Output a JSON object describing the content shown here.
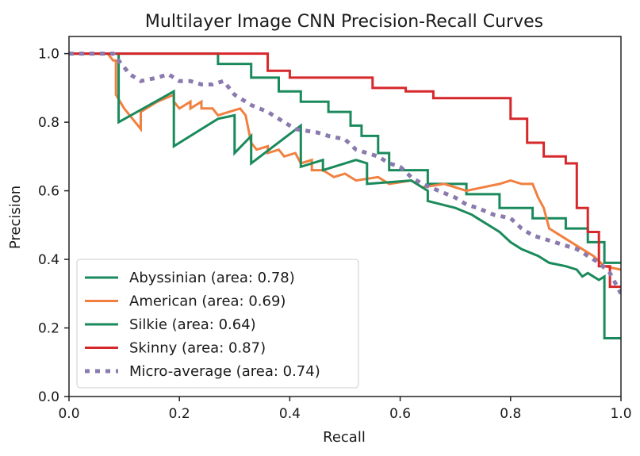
{
  "chart_data": {
    "type": "line",
    "title": "Multilayer Image CNN Precision-Recall Curves",
    "xlabel": "Recall",
    "ylabel": "Precision",
    "xlim": [
      0.0,
      1.0
    ],
    "ylim": [
      0.0,
      1.05
    ],
    "xticks": [
      "0.0",
      "0.2",
      "0.4",
      "0.6",
      "0.8",
      "1.0"
    ],
    "yticks": [
      "0.0",
      "0.2",
      "0.4",
      "0.6",
      "0.8",
      "1.0"
    ],
    "grid": false,
    "legend_position": "lower-left",
    "series": [
      {
        "name": "Abyssinian (area: 0.78)",
        "color": "#1a8a5c",
        "style": "solid",
        "points": [
          [
            0,
            1.0
          ],
          [
            0.27,
            1.0
          ],
          [
            0.27,
            0.97
          ],
          [
            0.33,
            0.97
          ],
          [
            0.33,
            0.93
          ],
          [
            0.38,
            0.93
          ],
          [
            0.38,
            0.89
          ],
          [
            0.42,
            0.89
          ],
          [
            0.42,
            0.86
          ],
          [
            0.47,
            0.86
          ],
          [
            0.47,
            0.83
          ],
          [
            0.51,
            0.83
          ],
          [
            0.51,
            0.79
          ],
          [
            0.53,
            0.79
          ],
          [
            0.53,
            0.76
          ],
          [
            0.56,
            0.76
          ],
          [
            0.56,
            0.71
          ],
          [
            0.58,
            0.71
          ],
          [
            0.58,
            0.66
          ],
          [
            0.65,
            0.66
          ],
          [
            0.65,
            0.62
          ],
          [
            0.72,
            0.62
          ],
          [
            0.72,
            0.59
          ],
          [
            0.78,
            0.59
          ],
          [
            0.78,
            0.55
          ],
          [
            0.84,
            0.55
          ],
          [
            0.84,
            0.52
          ],
          [
            0.9,
            0.52
          ],
          [
            0.9,
            0.49
          ],
          [
            0.94,
            0.49
          ],
          [
            0.94,
            0.45
          ],
          [
            0.97,
            0.45
          ],
          [
            0.97,
            0.39
          ],
          [
            1.0,
            0.39
          ]
        ]
      },
      {
        "name": "American (area: 0.69)",
        "color": "#f08040",
        "style": "solid",
        "points": [
          [
            0,
            1.0
          ],
          [
            0.07,
            1.0
          ],
          [
            0.08,
            0.98
          ],
          [
            0.085,
            0.98
          ],
          [
            0.085,
            0.88
          ],
          [
            0.1,
            0.84
          ],
          [
            0.13,
            0.78
          ],
          [
            0.13,
            0.83
          ],
          [
            0.15,
            0.85
          ],
          [
            0.16,
            0.86
          ],
          [
            0.19,
            0.88
          ],
          [
            0.19,
            0.86
          ],
          [
            0.2,
            0.84
          ],
          [
            0.22,
            0.86
          ],
          [
            0.22,
            0.84
          ],
          [
            0.24,
            0.86
          ],
          [
            0.24,
            0.84
          ],
          [
            0.26,
            0.84
          ],
          [
            0.27,
            0.82
          ],
          [
            0.29,
            0.83
          ],
          [
            0.31,
            0.84
          ],
          [
            0.32,
            0.82
          ],
          [
            0.33,
            0.74
          ],
          [
            0.34,
            0.72
          ],
          [
            0.36,
            0.73
          ],
          [
            0.36,
            0.71
          ],
          [
            0.38,
            0.72
          ],
          [
            0.39,
            0.7
          ],
          [
            0.41,
            0.71
          ],
          [
            0.42,
            0.68
          ],
          [
            0.44,
            0.69
          ],
          [
            0.44,
            0.66
          ],
          [
            0.46,
            0.66
          ],
          [
            0.48,
            0.64
          ],
          [
            0.5,
            0.65
          ],
          [
            0.52,
            0.63
          ],
          [
            0.56,
            0.64
          ],
          [
            0.58,
            0.62
          ],
          [
            0.62,
            0.63
          ],
          [
            0.64,
            0.61
          ],
          [
            0.68,
            0.62
          ],
          [
            0.72,
            0.6
          ],
          [
            0.75,
            0.61
          ],
          [
            0.78,
            0.62
          ],
          [
            0.8,
            0.63
          ],
          [
            0.82,
            0.62
          ],
          [
            0.84,
            0.62
          ],
          [
            0.85,
            0.58
          ],
          [
            0.86,
            0.55
          ],
          [
            0.87,
            0.49
          ],
          [
            0.89,
            0.47
          ],
          [
            0.92,
            0.44
          ],
          [
            0.95,
            0.41
          ],
          [
            0.97,
            0.38
          ],
          [
            1.0,
            0.37
          ]
        ]
      },
      {
        "name": "Silkie (area: 0.64)",
        "color": "#1a8a5c",
        "style": "solid",
        "points": [
          [
            0,
            1.0
          ],
          [
            0.09,
            1.0
          ],
          [
            0.09,
            0.8
          ],
          [
            0.19,
            0.89
          ],
          [
            0.19,
            0.73
          ],
          [
            0.27,
            0.81
          ],
          [
            0.3,
            0.82
          ],
          [
            0.3,
            0.71
          ],
          [
            0.33,
            0.76
          ],
          [
            0.33,
            0.68
          ],
          [
            0.42,
            0.79
          ],
          [
            0.42,
            0.67
          ],
          [
            0.46,
            0.69
          ],
          [
            0.46,
            0.66
          ],
          [
            0.52,
            0.69
          ],
          [
            0.54,
            0.68
          ],
          [
            0.54,
            0.62
          ],
          [
            0.62,
            0.63
          ],
          [
            0.65,
            0.6
          ],
          [
            0.65,
            0.57
          ],
          [
            0.7,
            0.55
          ],
          [
            0.73,
            0.53
          ],
          [
            0.74,
            0.52
          ],
          [
            0.76,
            0.5
          ],
          [
            0.78,
            0.48
          ],
          [
            0.8,
            0.45
          ],
          [
            0.82,
            0.43
          ],
          [
            0.85,
            0.41
          ],
          [
            0.87,
            0.39
          ],
          [
            0.9,
            0.38
          ],
          [
            0.92,
            0.37
          ],
          [
            0.93,
            0.35
          ],
          [
            0.94,
            0.36
          ],
          [
            0.95,
            0.35
          ],
          [
            0.96,
            0.34
          ],
          [
            0.97,
            0.35
          ],
          [
            0.97,
            0.17
          ],
          [
            1.0,
            0.17
          ]
        ]
      },
      {
        "name": "Skinny (area: 0.87)",
        "color": "#d6272b",
        "style": "solid",
        "points": [
          [
            0,
            1.0
          ],
          [
            0.36,
            1.0
          ],
          [
            0.36,
            0.95
          ],
          [
            0.4,
            0.95
          ],
          [
            0.4,
            0.93
          ],
          [
            0.55,
            0.93
          ],
          [
            0.55,
            0.9
          ],
          [
            0.61,
            0.9
          ],
          [
            0.61,
            0.89
          ],
          [
            0.66,
            0.89
          ],
          [
            0.66,
            0.87
          ],
          [
            0.8,
            0.87
          ],
          [
            0.8,
            0.81
          ],
          [
            0.83,
            0.81
          ],
          [
            0.83,
            0.74
          ],
          [
            0.86,
            0.74
          ],
          [
            0.86,
            0.7
          ],
          [
            0.9,
            0.7
          ],
          [
            0.9,
            0.68
          ],
          [
            0.92,
            0.68
          ],
          [
            0.92,
            0.55
          ],
          [
            0.94,
            0.55
          ],
          [
            0.94,
            0.48
          ],
          [
            0.96,
            0.48
          ],
          [
            0.96,
            0.38
          ],
          [
            0.98,
            0.38
          ],
          [
            0.98,
            0.32
          ],
          [
            1.0,
            0.32
          ]
        ]
      },
      {
        "name": "Micro-average (area: 0.74)",
        "color": "#8b7aad",
        "style": "dotted",
        "points": [
          [
            0,
            1.0
          ],
          [
            0.08,
            1.0
          ],
          [
            0.11,
            0.94
          ],
          [
            0.13,
            0.92
          ],
          [
            0.16,
            0.93
          ],
          [
            0.18,
            0.94
          ],
          [
            0.2,
            0.92
          ],
          [
            0.22,
            0.92
          ],
          [
            0.24,
            0.91
          ],
          [
            0.26,
            0.91
          ],
          [
            0.28,
            0.92
          ],
          [
            0.3,
            0.88
          ],
          [
            0.33,
            0.85
          ],
          [
            0.36,
            0.83
          ],
          [
            0.38,
            0.81
          ],
          [
            0.41,
            0.78
          ],
          [
            0.45,
            0.77
          ],
          [
            0.47,
            0.76
          ],
          [
            0.5,
            0.75
          ],
          [
            0.52,
            0.72
          ],
          [
            0.54,
            0.71
          ],
          [
            0.56,
            0.7
          ],
          [
            0.58,
            0.68
          ],
          [
            0.6,
            0.67
          ],
          [
            0.62,
            0.64
          ],
          [
            0.64,
            0.62
          ],
          [
            0.67,
            0.6
          ],
          [
            0.7,
            0.58
          ],
          [
            0.72,
            0.56
          ],
          [
            0.74,
            0.55
          ],
          [
            0.77,
            0.53
          ],
          [
            0.8,
            0.52
          ],
          [
            0.82,
            0.49
          ],
          [
            0.84,
            0.47
          ],
          [
            0.86,
            0.46
          ],
          [
            0.88,
            0.45
          ],
          [
            0.9,
            0.44
          ],
          [
            0.92,
            0.43
          ],
          [
            0.94,
            0.41
          ],
          [
            0.96,
            0.39
          ],
          [
            0.98,
            0.36
          ],
          [
            1.0,
            0.3
          ]
        ]
      }
    ]
  }
}
